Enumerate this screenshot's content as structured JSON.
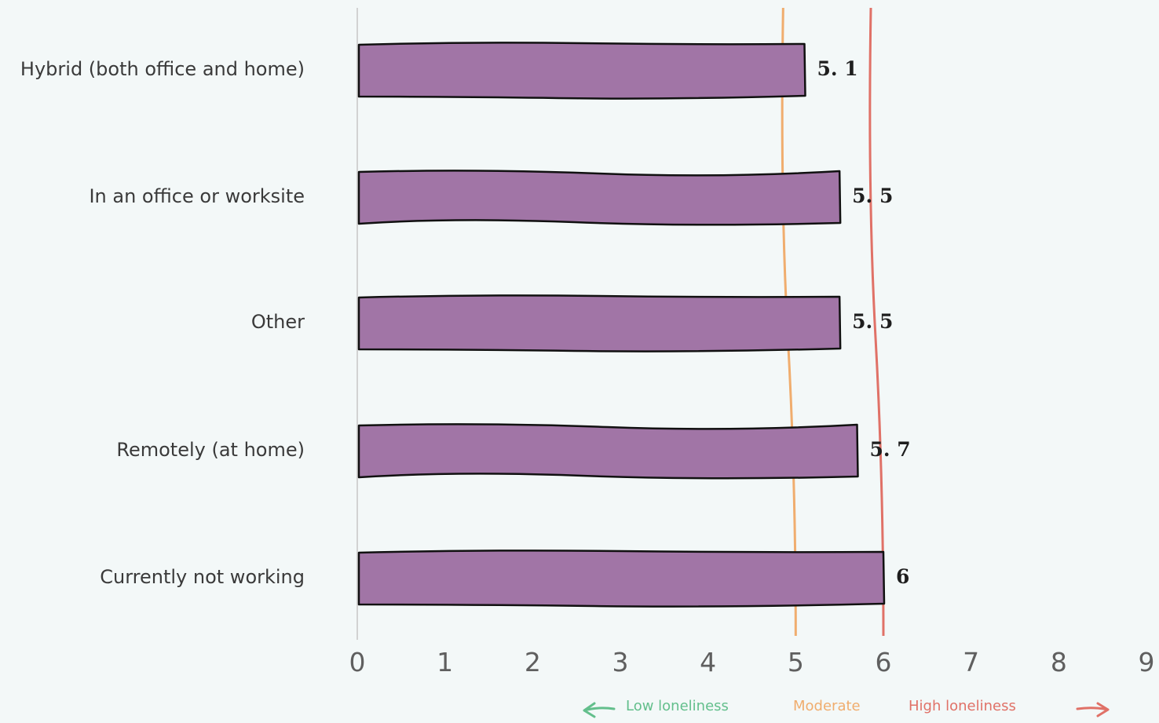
{
  "chart_data": {
    "type": "bar",
    "orientation": "horizontal",
    "categories": [
      "Hybrid (both office and home)",
      "In an office or worksite",
      "Other",
      "Remotely (at home)",
      "Currently not working"
    ],
    "values": [
      5.1,
      5.5,
      5.5,
      5.7,
      6
    ],
    "value_labels": [
      "5. 1",
      "5. 5",
      "5. 5",
      "5. 7",
      "6"
    ],
    "xlim": [
      0,
      9
    ],
    "xticks": [
      0,
      1,
      2,
      3,
      4,
      5,
      6,
      7,
      8,
      9
    ],
    "title": "",
    "xlabel": "",
    "ylabel": "",
    "grid": false,
    "bar_color": "#a175a6",
    "bar_outline_color": "#111111",
    "reference_lines": [
      {
        "value": 5,
        "color": "#f0ad6e"
      },
      {
        "value": 6,
        "color": "#e07167"
      }
    ],
    "legend": {
      "placement": "bottom",
      "items": [
        {
          "label": "Low loneliness",
          "color": "#63bf8c",
          "arrow": "left"
        },
        {
          "label": "Moderate",
          "color": "#f0ad6e"
        },
        {
          "label": "High loneliness",
          "color": "#e07167",
          "arrow": "right"
        }
      ]
    }
  }
}
